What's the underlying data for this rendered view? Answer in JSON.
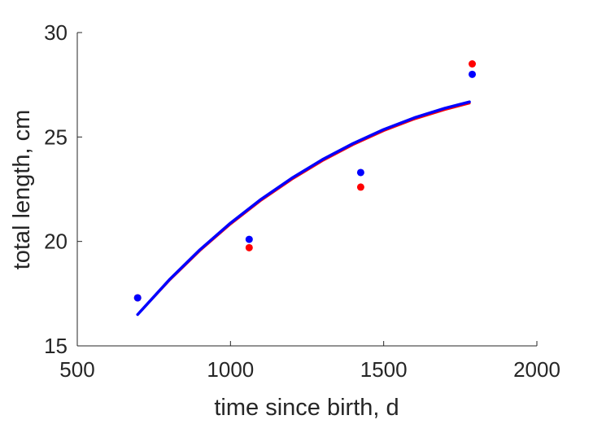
{
  "chart_data": {
    "type": "scatter",
    "title": "",
    "xlabel": "time since birth, d",
    "ylabel": "total length, cm",
    "xlim": [
      500,
      2000
    ],
    "ylim": [
      15,
      30
    ],
    "xticks": [
      500,
      1000,
      1500,
      2000
    ],
    "yticks": [
      15,
      20,
      25,
      30
    ],
    "grid": false,
    "legend": "none",
    "series": [
      {
        "kind": "points",
        "color": "#ff0000",
        "x": [
          697,
          1061,
          1425,
          1789
        ],
        "y": [
          17.3,
          19.7,
          22.6,
          28.5
        ]
      },
      {
        "kind": "points",
        "color": "#0000ff",
        "x": [
          697,
          1061,
          1425,
          1789
        ],
        "y": [
          17.3,
          20.1,
          23.3,
          28.0
        ]
      },
      {
        "kind": "line",
        "color": "#ff0000",
        "x": [
          697,
          800,
          900,
          1000,
          1100,
          1200,
          1300,
          1400,
          1500,
          1600,
          1700,
          1780
        ],
        "y": [
          16.5,
          18.13,
          19.56,
          20.83,
          21.97,
          22.97,
          23.86,
          24.63,
          25.3,
          25.86,
          26.31,
          26.62
        ]
      },
      {
        "kind": "line",
        "color": "#0000ff",
        "x": [
          697,
          800,
          900,
          1000,
          1100,
          1200,
          1300,
          1400,
          1500,
          1600,
          1700,
          1780
        ],
        "y": [
          16.5,
          18.16,
          19.6,
          20.88,
          22.02,
          23.03,
          23.92,
          24.69,
          25.36,
          25.92,
          26.38,
          26.68
        ]
      }
    ]
  }
}
